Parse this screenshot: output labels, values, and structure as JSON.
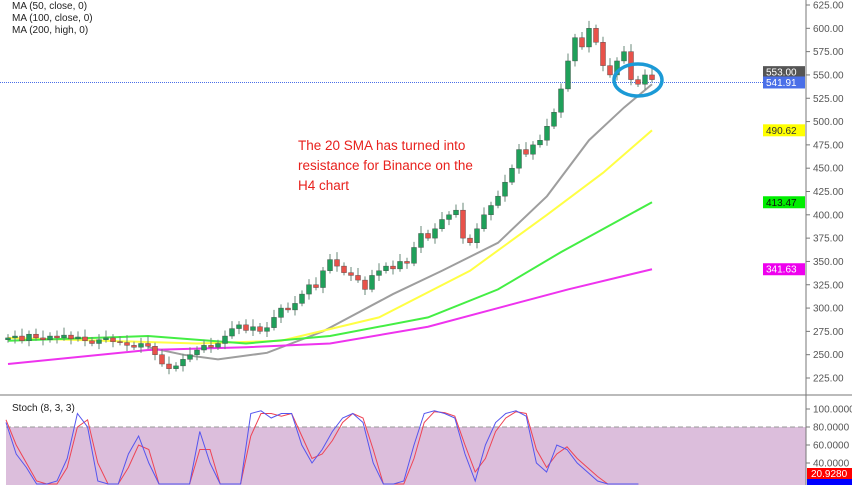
{
  "legend": [
    "MA (50, close, 0)",
    "MA (100, close, 0)",
    "MA (200, high, 0)"
  ],
  "annotation": "The 20 SMA has turned into resistance for Binance on the H4 chart",
  "stoch_label": "Stoch (8, 3, 3)",
  "chart_data": {
    "type": "candlestick",
    "price_axis": {
      "range": [
        212,
        635
      ],
      "ticks": [
        "625.00",
        "600.00",
        "575.00",
        "550.00",
        "525.00",
        "500.00",
        "475.00",
        "450.00",
        "425.00",
        "400.00",
        "375.00",
        "350.00",
        "325.00",
        "300.00",
        "275.00",
        "250.00",
        "225.00"
      ]
    },
    "closes": [
      268,
      270,
      265,
      272,
      268,
      266,
      270,
      268,
      271,
      267,
      269,
      265,
      262,
      266,
      268,
      264,
      263,
      260,
      258,
      262,
      259,
      250,
      240,
      235,
      238,
      245,
      250,
      255,
      260,
      258,
      262,
      270,
      278,
      282,
      276,
      280,
      275,
      279,
      290,
      300,
      298,
      305,
      315,
      325,
      322,
      340,
      352,
      345,
      338,
      335,
      330,
      320,
      335,
      340,
      345,
      342,
      350,
      348,
      365,
      380,
      375,
      385,
      395,
      400,
      405,
      375,
      370,
      385,
      400,
      410,
      420,
      435,
      450,
      470,
      465,
      475,
      480,
      495,
      510,
      535,
      565,
      590,
      580,
      600,
      585,
      560,
      550,
      565,
      575,
      545,
      540,
      550,
      545
    ],
    "colors": {
      "up": "#1fa05a",
      "down": "#e8524a",
      "ma20": "#9e9e9e",
      "ma50": "#ffff44",
      "ma100": "#44ee44",
      "ma200": "#ee33ee",
      "current_line": "#4a6fe8",
      "circle": "#1c9ad6"
    },
    "moving_averages": [
      {
        "id": "ma20",
        "points": [
          [
            20,
            258
          ],
          [
            25,
            250
          ],
          [
            30,
            245
          ],
          [
            37,
            252
          ],
          [
            45,
            275
          ],
          [
            55,
            315
          ],
          [
            62,
            340
          ],
          [
            70,
            370
          ],
          [
            77,
            420
          ],
          [
            83,
            480
          ],
          [
            88,
            515
          ],
          [
            92,
            540
          ]
        ]
      },
      {
        "id": "ma50",
        "points": [
          [
            0,
            268
          ],
          [
            27,
            262
          ],
          [
            39,
            265
          ],
          [
            53,
            290
          ],
          [
            66,
            340
          ],
          [
            77,
            400
          ],
          [
            85,
            445
          ],
          [
            92,
            490.62
          ]
        ]
      },
      {
        "id": "ma100",
        "points": [
          [
            0,
            265
          ],
          [
            20,
            270
          ],
          [
            34,
            262
          ],
          [
            46,
            270
          ],
          [
            60,
            290
          ],
          [
            70,
            320
          ],
          [
            79,
            360
          ],
          [
            92,
            413.47
          ]
        ]
      },
      {
        "id": "ma200",
        "points": [
          [
            0,
            240
          ],
          [
            20,
            255
          ],
          [
            34,
            258
          ],
          [
            46,
            262
          ],
          [
            60,
            280
          ],
          [
            70,
            300
          ],
          [
            80,
            320
          ],
          [
            92,
            341.63
          ]
        ]
      }
    ],
    "price_labels": [
      {
        "text": "553.00",
        "value": 553,
        "bg": "#555555",
        "fg": "#ffffff"
      },
      {
        "text": "541.91",
        "value": 541.91,
        "bg": "#4a6fe8",
        "fg": "#ffffff"
      },
      {
        "text": "490.62",
        "value": 490.62,
        "bg": "#ffff00",
        "fg": "#333333"
      },
      {
        "text": "413.47",
        "value": 413.47,
        "bg": "#00ee00",
        "fg": "#111111"
      },
      {
        "text": "341.63",
        "value": 341.63,
        "bg": "#ee00ee",
        "fg": "#ffffff"
      }
    ],
    "current_price": 541.91,
    "stoch": {
      "axis_ticks": [
        "100.0000",
        "80.0000",
        "60.0000",
        "40.0000"
      ],
      "levels": [
        80,
        20
      ],
      "k": [
        85,
        50,
        35,
        10,
        5,
        20,
        45,
        95,
        80,
        20,
        0,
        10,
        50,
        70,
        40,
        0,
        -5,
        0,
        10,
        75,
        40,
        -10,
        -20,
        -10,
        95,
        98,
        90,
        95,
        95,
        60,
        40,
        55,
        75,
        90,
        95,
        85,
        40,
        0,
        -5,
        20,
        60,
        95,
        98,
        95,
        90,
        50,
        20,
        60,
        85,
        95,
        98,
        92,
        40,
        30,
        60,
        55,
        40,
        30,
        20,
        5,
        -10,
        -20,
        -30
      ],
      "d": [
        88,
        60,
        40,
        20,
        10,
        15,
        35,
        80,
        88,
        40,
        5,
        5,
        35,
        60,
        55,
        10,
        -5,
        -3,
        5,
        55,
        55,
        0,
        -15,
        -15,
        70,
        95,
        95,
        92,
        95,
        70,
        45,
        50,
        65,
        85,
        95,
        90,
        55,
        10,
        -3,
        10,
        45,
        85,
        97,
        96,
        92,
        60,
        30,
        45,
        75,
        90,
        97,
        95,
        55,
        35,
        50,
        58,
        45,
        35,
        25,
        12,
        -5,
        -15,
        -25
      ],
      "labels": [
        {
          "text": "20.9280",
          "bg": "#ff0000"
        },
        {
          "text": "",
          "bg": "#0000ff"
        }
      ]
    }
  }
}
